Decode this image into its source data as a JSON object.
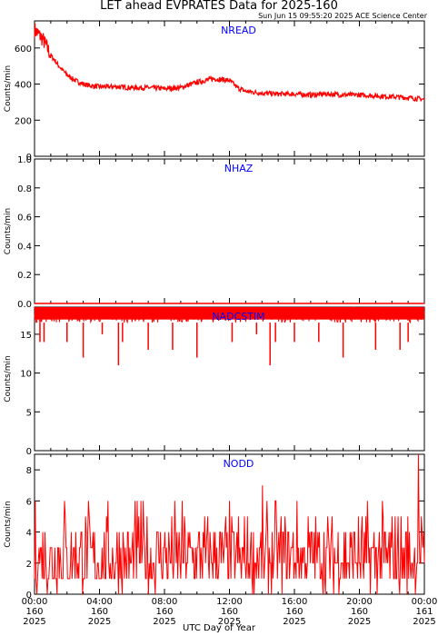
{
  "title": "LET ahead EVPRATES Data for 2025-160",
  "timestamp": "Sun Jun 15 09:55:20 2025 ACE Science Center",
  "xlabel": "UTC Day of Year",
  "colors": {
    "series": "#ff0000",
    "panel_label": "#0000ff",
    "axis": "#000000"
  },
  "chart_data": [
    {
      "type": "line",
      "panel": "NREAD",
      "ylabel": "Counts/min",
      "ylim": [
        0,
        750
      ],
      "yticks": [
        "0",
        "200",
        "400",
        "600"
      ],
      "x": [
        "00:00",
        "00:30",
        "01:00",
        "01:30",
        "02:00",
        "02:30",
        "03:00",
        "03:30",
        "04:00",
        "05:00",
        "06:00",
        "07:00",
        "08:00",
        "09:00",
        "10:00",
        "11:00",
        "11:30",
        "12:00",
        "12:30",
        "13:00",
        "14:00",
        "15:00",
        "16:00",
        "17:00",
        "18:00",
        "19:00",
        "20:00",
        "21:00",
        "22:00",
        "23:00",
        "24:00"
      ],
      "series": [
        {
          "values": [
            700,
            650,
            560,
            500,
            450,
            420,
            400,
            390,
            385,
            385,
            380,
            380,
            375,
            380,
            410,
            430,
            425,
            420,
            380,
            360,
            350,
            345,
            345,
            340,
            345,
            340,
            340,
            335,
            330,
            325,
            315
          ]
        }
      ]
    },
    {
      "type": "line",
      "panel": "NHAZ",
      "ylabel": "Counts/min",
      "ylim": [
        0,
        1
      ],
      "yticks": [
        "0.0",
        "0.2",
        "0.4",
        "0.6",
        "0.8",
        "1.0"
      ],
      "x": [
        "00:00",
        "24:00"
      ],
      "series": [
        {
          "values": [
            0,
            0
          ]
        }
      ]
    },
    {
      "type": "line",
      "panel": "NADCSTIM",
      "ylabel": "Counts/min",
      "ylim": [
        0,
        18.5
      ],
      "yticks": [
        "0",
        "5",
        "10",
        "15"
      ],
      "baseline": 17.5,
      "spike_low": [
        {
          "x": "00:20",
          "y": 14
        },
        {
          "x": "00:35",
          "y": 14
        },
        {
          "x": "02:00",
          "y": 14
        },
        {
          "x": "03:00",
          "y": 12
        },
        {
          "x": "04:10",
          "y": 15
        },
        {
          "x": "05:10",
          "y": 11
        },
        {
          "x": "05:25",
          "y": 14
        },
        {
          "x": "07:00",
          "y": 13
        },
        {
          "x": "08:30",
          "y": 13
        },
        {
          "x": "10:00",
          "y": 12
        },
        {
          "x": "12:10",
          "y": 14
        },
        {
          "x": "13:40",
          "y": 15
        },
        {
          "x": "14:30",
          "y": 11
        },
        {
          "x": "14:50",
          "y": 14
        },
        {
          "x": "16:00",
          "y": 14
        },
        {
          "x": "17:30",
          "y": 14
        },
        {
          "x": "19:00",
          "y": 12
        },
        {
          "x": "21:00",
          "y": 13
        },
        {
          "x": "22:30",
          "y": 13
        },
        {
          "x": "23:00",
          "y": 14
        }
      ]
    },
    {
      "type": "line",
      "panel": "NODD",
      "ylabel": "Counts/min",
      "ylim": [
        0,
        9
      ],
      "yticks": [
        "0",
        "2",
        "4",
        "6",
        "8"
      ],
      "range": {
        "min": 0,
        "max": 9,
        "typical": [
          1,
          4
        ]
      }
    }
  ],
  "xticks": [
    {
      "time": "00:00",
      "doy": "160",
      "year": "2025"
    },
    {
      "time": "04:00",
      "doy": "160",
      "year": "2025"
    },
    {
      "time": "08:00",
      "doy": "160",
      "year": "2025"
    },
    {
      "time": "12:00",
      "doy": "160",
      "year": "2025"
    },
    {
      "time": "16:00",
      "doy": "160",
      "year": "2025"
    },
    {
      "time": "20:00",
      "doy": "160",
      "year": "2025"
    },
    {
      "time": "00:00",
      "doy": "161",
      "year": "2025"
    }
  ]
}
